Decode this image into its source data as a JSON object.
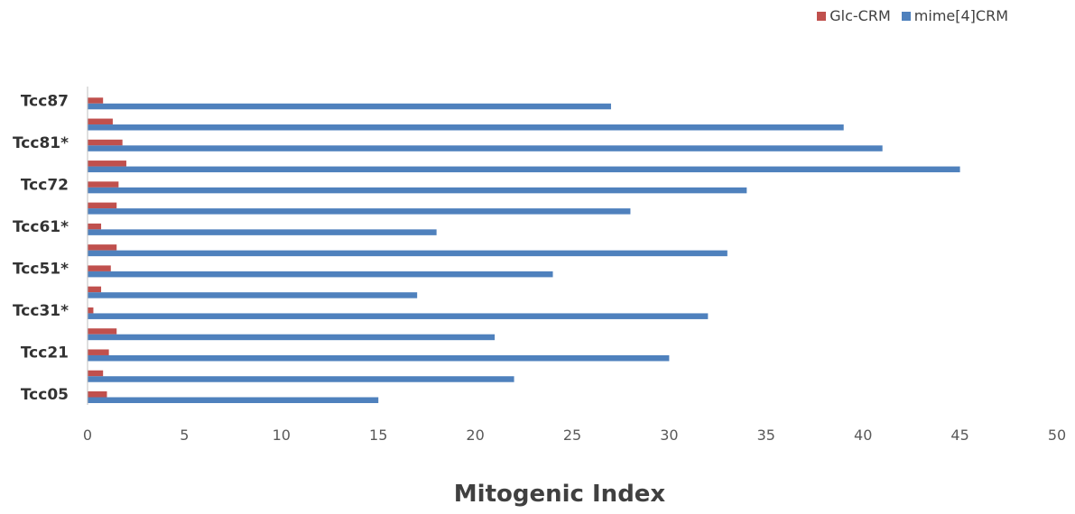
{
  "chart_data": {
    "type": "bar",
    "orientation": "horizontal",
    "title": "",
    "xlabel": "Mitogenic Index",
    "ylabel": "",
    "xlim": [
      0,
      50
    ],
    "xticks": [
      0,
      5,
      10,
      15,
      20,
      25,
      30,
      35,
      40,
      45,
      50
    ],
    "grid": false,
    "legend_position": "top-right",
    "category_labels": [
      "Tcc05",
      "",
      "Tcc21",
      "",
      "Tcc31*",
      "",
      "Tcc51*",
      "",
      "Tcc61*",
      "",
      "Tcc72",
      "",
      "Tcc81*",
      "",
      "Tcc87"
    ],
    "series": [
      {
        "name": "Glc-CRM",
        "color": "#c0504d",
        "values": [
          1.0,
          0.8,
          1.1,
          1.5,
          0.3,
          0.7,
          1.2,
          1.5,
          0.7,
          1.5,
          1.6,
          2.0,
          1.8,
          1.3,
          0.8
        ]
      },
      {
        "name": "mime[4]CRM",
        "color": "#4f81bd",
        "values": [
          15,
          22,
          30,
          21,
          32,
          17,
          24,
          33,
          18,
          28,
          34,
          45,
          41,
          39,
          27
        ]
      }
    ]
  }
}
